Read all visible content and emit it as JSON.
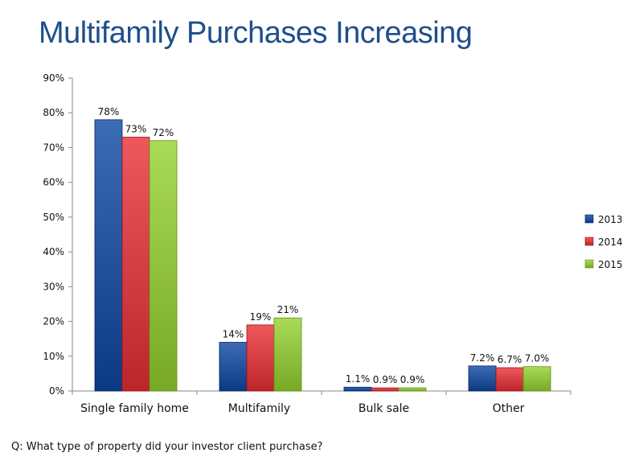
{
  "title": "Multifamily Purchases Increasing",
  "footnote": "Q: What type of property did your investor client purchase?",
  "chart_data": {
    "type": "bar",
    "title": "Multifamily Purchases Increasing",
    "categories": [
      "Single family home",
      "Multifamily",
      "Bulk sale",
      "Other"
    ],
    "series": [
      {
        "name": "2013",
        "color": "#1f4e96",
        "values": [
          78,
          14,
          1.1,
          7.2
        ],
        "labels": [
          "78%",
          "14%",
          "1.1%",
          "7.2%"
        ]
      },
      {
        "name": "2014",
        "color": "#d03a3f",
        "values": [
          73,
          19,
          0.9,
          6.7
        ],
        "labels": [
          "73%",
          "19%",
          "0.9%",
          "6.7%"
        ]
      },
      {
        "name": "2015",
        "color": "#8cbd3a",
        "values": [
          72,
          21,
          0.9,
          7.0
        ],
        "labels": [
          "72%",
          "21%",
          "0.9%",
          "7.0%"
        ]
      }
    ],
    "y_ticks": [
      "0%",
      "10%",
      "20%",
      "30%",
      "40%",
      "50%",
      "60%",
      "70%",
      "80%",
      "90%"
    ],
    "ylim": [
      0,
      90
    ],
    "grid": false,
    "legend_position": "right"
  }
}
